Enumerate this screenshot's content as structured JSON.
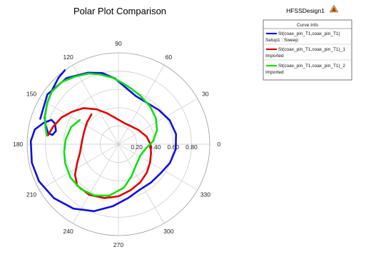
{
  "chart_data": {
    "type": "polar",
    "title": "Polar Plot Comparison",
    "design_name": "HFSSDesign1",
    "logo_label": "ANSOFT",
    "legend_title": "Curve Info",
    "radial_ticks": [
      "0.20",
      "0.40",
      "0.60",
      "0.80"
    ],
    "radial_values": [
      0.2,
      0.4,
      0.6,
      0.8
    ],
    "angle_ticks": [
      "0",
      "30",
      "60",
      "90",
      "120",
      "150",
      "180",
      "210",
      "240",
      "270",
      "300",
      "330"
    ],
    "angle_values": [
      0,
      30,
      60,
      90,
      120,
      150,
      180,
      210,
      240,
      270,
      300,
      330
    ],
    "rlim": [
      0,
      1
    ],
    "grid": true,
    "legend_position": "top-right",
    "series": [
      {
        "name": "St(coax_pin_T1,coax_pin_T1)",
        "subtitle": "Setup1 : Sweep",
        "color": "#1010e0",
        "points": [
          [
            0.9,
            162
          ],
          [
            0.95,
            145
          ],
          [
            0.92,
            128
          ],
          [
            0.85,
            113
          ],
          [
            0.8,
            103
          ],
          [
            0.72,
            93
          ],
          [
            0.62,
            82
          ],
          [
            0.56,
            70
          ],
          [
            0.55,
            55
          ],
          [
            0.58,
            40
          ],
          [
            0.62,
            25
          ],
          [
            0.64,
            10
          ],
          [
            0.63,
            -5
          ],
          [
            0.6,
            -20
          ],
          [
            0.56,
            -35
          ],
          [
            0.55,
            -50
          ],
          [
            0.55,
            -65
          ],
          [
            0.6,
            -80
          ],
          [
            0.68,
            -95
          ],
          [
            0.78,
            -110
          ],
          [
            0.86,
            -125
          ],
          [
            0.92,
            -140
          ],
          [
            0.96,
            -155
          ],
          [
            0.97,
            -168
          ],
          [
            0.96,
            178
          ],
          [
            0.93,
            170
          ],
          [
            0.85,
            164
          ],
          [
            0.78,
            160
          ],
          [
            0.73,
            162
          ],
          [
            0.7,
            168
          ],
          [
            0.73,
            172
          ],
          [
            0.78,
            171
          ],
          [
            0.82,
            166
          ],
          [
            0.86,
            160
          ],
          [
            0.9,
            150
          ],
          [
            0.94,
            140
          ],
          [
            0.98,
            132
          ],
          [
            1.0,
            126
          ]
        ]
      },
      {
        "name": "St(coax_pin_T1,coax_pin_T1)_1",
        "subtitle": "Imported",
        "color": "#e00000",
        "points": [
          [
            0.78,
            173
          ],
          [
            0.74,
            165
          ],
          [
            0.69,
            155
          ],
          [
            0.62,
            145
          ],
          [
            0.55,
            134
          ],
          [
            0.45,
            122
          ],
          [
            0.36,
            110
          ],
          [
            0.28,
            94
          ],
          [
            0.24,
            75
          ],
          [
            0.24,
            55
          ],
          [
            0.27,
            35
          ],
          [
            0.32,
            15
          ],
          [
            0.35,
            0
          ],
          [
            0.37,
            -15
          ],
          [
            0.4,
            -30
          ],
          [
            0.44,
            -45
          ],
          [
            0.48,
            -60
          ],
          [
            0.52,
            -75
          ],
          [
            0.57,
            -90
          ],
          [
            0.61,
            -105
          ],
          [
            0.64,
            -120
          ],
          [
            0.64,
            -135
          ],
          [
            0.58,
            -145
          ],
          [
            0.5,
            -155
          ],
          [
            0.43,
            -168
          ],
          [
            0.4,
            175
          ],
          [
            0.4,
            160
          ],
          [
            0.42,
            145
          ],
          [
            0.44,
            132
          ]
        ]
      },
      {
        "name": "St(coax_pin_T1,coax_pin_T1)_2",
        "subtitle": "Imported",
        "color": "#10e010",
        "points": [
          [
            0.79,
            173
          ],
          [
            0.82,
            167
          ],
          [
            0.86,
            159
          ],
          [
            0.9,
            150
          ],
          [
            0.93,
            142
          ],
          [
            0.92,
            132
          ],
          [
            0.88,
            123
          ],
          [
            0.84,
            113
          ],
          [
            0.79,
            105
          ],
          [
            0.73,
            95
          ],
          [
            0.67,
            86
          ],
          [
            0.62,
            76
          ],
          [
            0.58,
            65
          ],
          [
            0.54,
            50
          ],
          [
            0.5,
            35
          ],
          [
            0.45,
            20
          ],
          [
            0.38,
            5
          ],
          [
            0.3,
            -10
          ],
          [
            0.27,
            -28
          ],
          [
            0.3,
            -50
          ],
          [
            0.38,
            -68
          ],
          [
            0.48,
            -83
          ],
          [
            0.57,
            -100
          ],
          [
            0.62,
            -115
          ],
          [
            0.64,
            -130
          ],
          [
            0.64,
            -145
          ],
          [
            0.62,
            -160
          ],
          [
            0.6,
            -172
          ],
          [
            0.58,
            175
          ],
          [
            0.55,
            160
          ],
          [
            0.5,
            148
          ]
        ]
      }
    ]
  }
}
